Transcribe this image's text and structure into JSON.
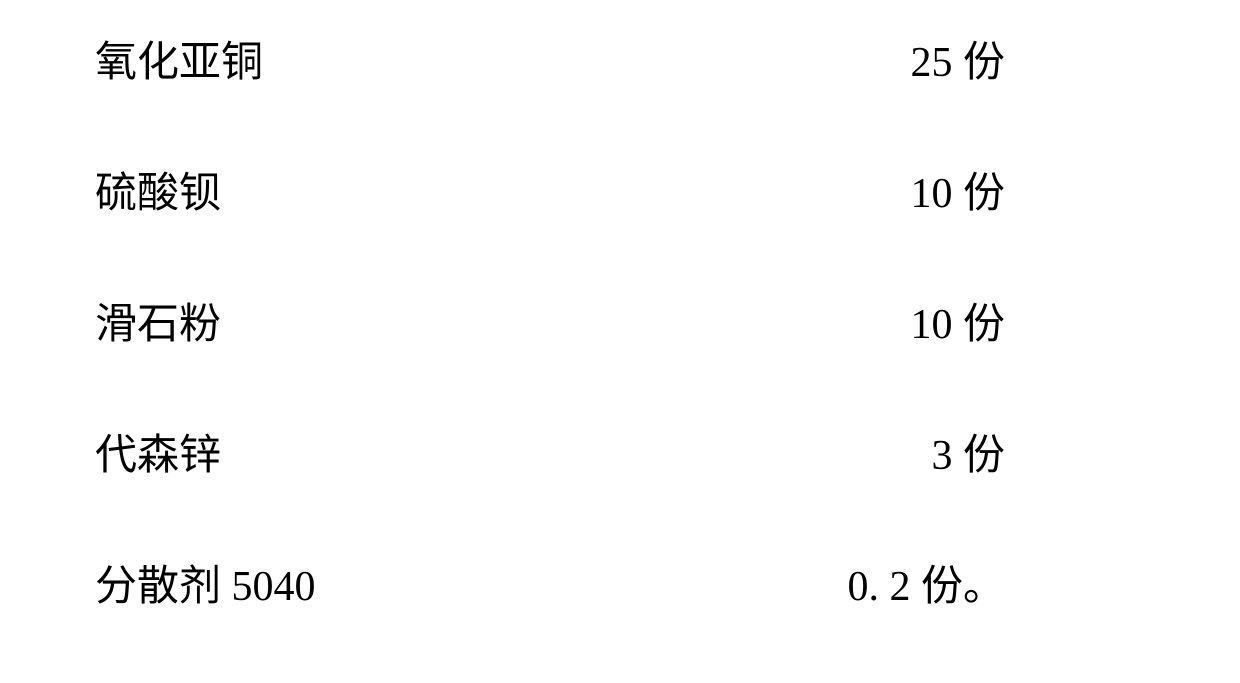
{
  "table": {
    "rows": [
      {
        "ingredient": "氧化亚铜",
        "amount": "25 份"
      },
      {
        "ingredient": "硫酸钡",
        "amount": "10 份"
      },
      {
        "ingredient": "滑石粉",
        "amount": "10 份"
      },
      {
        "ingredient": "代森锌",
        "amount": "3 份"
      },
      {
        "ingredient": "分散剂 5040",
        "amount": "0. 2 份。"
      }
    ],
    "font_size": 42,
    "text_color": "#000000",
    "background_color": "#ffffff",
    "row_spacing": 70,
    "font_family": "SimSun"
  }
}
